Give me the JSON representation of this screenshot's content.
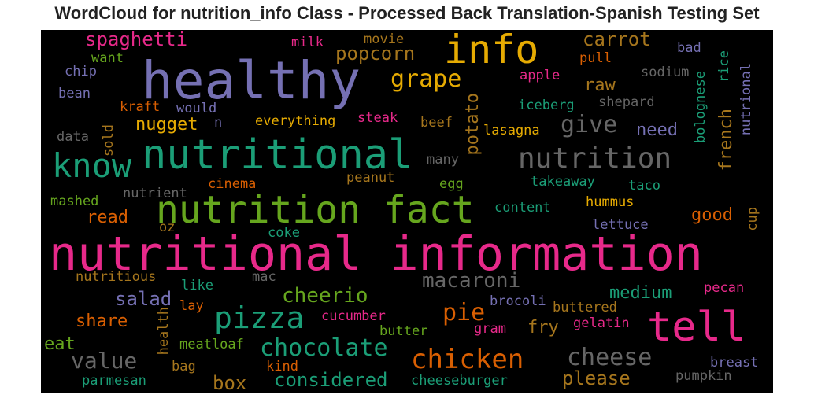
{
  "title": "WordCloud for nutrition_info Class - Processed Back Translation-Spanish Testing Set",
  "words": [
    {
      "text": "nutritional information",
      "color": "#e7298a"
    },
    {
      "text": "healthy",
      "color": "#7570b3"
    },
    {
      "text": "nutritional",
      "color": "#1b9e77"
    },
    {
      "text": "nutrition fact",
      "color": "#66a61e"
    },
    {
      "text": "info",
      "color": "#e6ab02"
    },
    {
      "text": "know",
      "color": "#1b9e77"
    },
    {
      "text": "tell",
      "color": "#e7298a"
    },
    {
      "text": "nutrition",
      "color": "#666666"
    },
    {
      "text": "pizza",
      "color": "#1b9e77"
    },
    {
      "text": "chicken",
      "color": "#d95f02"
    },
    {
      "text": "chocolate",
      "color": "#1b9e77"
    },
    {
      "text": "grape",
      "color": "#e6ab02"
    },
    {
      "text": "cheese",
      "color": "#666666"
    },
    {
      "text": "give",
      "color": "#666666"
    },
    {
      "text": "macaroni",
      "color": "#666666"
    },
    {
      "text": "value",
      "color": "#666666"
    },
    {
      "text": "cheerio",
      "color": "#66a61e"
    },
    {
      "text": "popcorn",
      "color": "#a6761d"
    },
    {
      "text": "spaghetti",
      "color": "#e7298a"
    },
    {
      "text": "carrot",
      "color": "#a6761d"
    },
    {
      "text": "nugget",
      "color": "#e6ab02"
    },
    {
      "text": "salad",
      "color": "#7570b3"
    },
    {
      "text": "pie",
      "color": "#d95f02"
    },
    {
      "text": "considered",
      "color": "#1b9e77"
    },
    {
      "text": "box",
      "color": "#a6761d"
    },
    {
      "text": "please",
      "color": "#a6761d"
    },
    {
      "text": "medium",
      "color": "#1b9e77"
    },
    {
      "text": "raw",
      "color": "#a6761d"
    },
    {
      "text": "need",
      "color": "#7570b3"
    },
    {
      "text": "potato",
      "color": "#a6761d"
    },
    {
      "text": "french",
      "color": "#a6761d"
    },
    {
      "text": "good",
      "color": "#d95f02"
    },
    {
      "text": "read",
      "color": "#d95f02"
    },
    {
      "text": "share",
      "color": "#d95f02"
    },
    {
      "text": "eat",
      "color": "#66a61e"
    },
    {
      "text": "fry",
      "color": "#a6761d"
    },
    {
      "text": "iceberg",
      "color": "#1b9e77"
    },
    {
      "text": "apple",
      "color": "#e7298a"
    },
    {
      "text": "pull",
      "color": "#d95f02"
    },
    {
      "text": "sodium",
      "color": "#666666"
    },
    {
      "text": "shepard",
      "color": "#666666"
    },
    {
      "text": "rice",
      "color": "#1b9e77"
    },
    {
      "text": "nutrional",
      "color": "#7570b3"
    },
    {
      "text": "bolognese",
      "color": "#1b9e77"
    },
    {
      "text": "bad",
      "color": "#7570b3"
    },
    {
      "text": "movie",
      "color": "#a6761d"
    },
    {
      "text": "milk",
      "color": "#e7298a"
    },
    {
      "text": "want",
      "color": "#66a61e"
    },
    {
      "text": "chip",
      "color": "#7570b3"
    },
    {
      "text": "bean",
      "color": "#7570b3"
    },
    {
      "text": "kraft",
      "color": "#d95f02"
    },
    {
      "text": "would",
      "color": "#7570b3"
    },
    {
      "text": "n",
      "color": "#7570b3"
    },
    {
      "text": "sold",
      "color": "#a6761d"
    },
    {
      "text": "data",
      "color": "#666666"
    },
    {
      "text": "everything",
      "color": "#e6ab02"
    },
    {
      "text": "steak",
      "color": "#e7298a"
    },
    {
      "text": "beef",
      "color": "#a6761d"
    },
    {
      "text": "lasagna",
      "color": "#e6ab02"
    },
    {
      "text": "many",
      "color": "#666666"
    },
    {
      "text": "egg",
      "color": "#66a61e"
    },
    {
      "text": "peanut",
      "color": "#a6761d"
    },
    {
      "text": "takeaway",
      "color": "#1b9e77"
    },
    {
      "text": "taco",
      "color": "#1b9e77"
    },
    {
      "text": "cinema",
      "color": "#d95f02"
    },
    {
      "text": "nutrient",
      "color": "#666666"
    },
    {
      "text": "mashed",
      "color": "#66a61e"
    },
    {
      "text": "hummus",
      "color": "#e6ab02"
    },
    {
      "text": "content",
      "color": "#1b9e77"
    },
    {
      "text": "cup",
      "color": "#a6761d"
    },
    {
      "text": "lettuce",
      "color": "#7570b3"
    },
    {
      "text": "oz",
      "color": "#a6761d"
    },
    {
      "text": "coke",
      "color": "#1b9e77"
    },
    {
      "text": "nutritious",
      "color": "#a6761d"
    },
    {
      "text": "mac",
      "color": "#666666"
    },
    {
      "text": "like",
      "color": "#1b9e77"
    },
    {
      "text": "lay",
      "color": "#d95f02"
    },
    {
      "text": "pecan",
      "color": "#e7298a"
    },
    {
      "text": "brocoli",
      "color": "#7570b3"
    },
    {
      "text": "buttered",
      "color": "#a6761d"
    },
    {
      "text": "cucumber",
      "color": "#e7298a"
    },
    {
      "text": "gram",
      "color": "#e7298a"
    },
    {
      "text": "gelatin",
      "color": "#e7298a"
    },
    {
      "text": "health",
      "color": "#a6761d"
    },
    {
      "text": "meatloaf",
      "color": "#66a61e"
    },
    {
      "text": "butter",
      "color": "#66a61e"
    },
    {
      "text": "bag",
      "color": "#a6761d"
    },
    {
      "text": "kind",
      "color": "#d95f02"
    },
    {
      "text": "breast",
      "color": "#7570b3"
    },
    {
      "text": "pumpkin",
      "color": "#666666"
    },
    {
      "text": "parmesan",
      "color": "#1b9e77"
    },
    {
      "text": "cheeseburger",
      "color": "#1b9e77"
    }
  ]
}
